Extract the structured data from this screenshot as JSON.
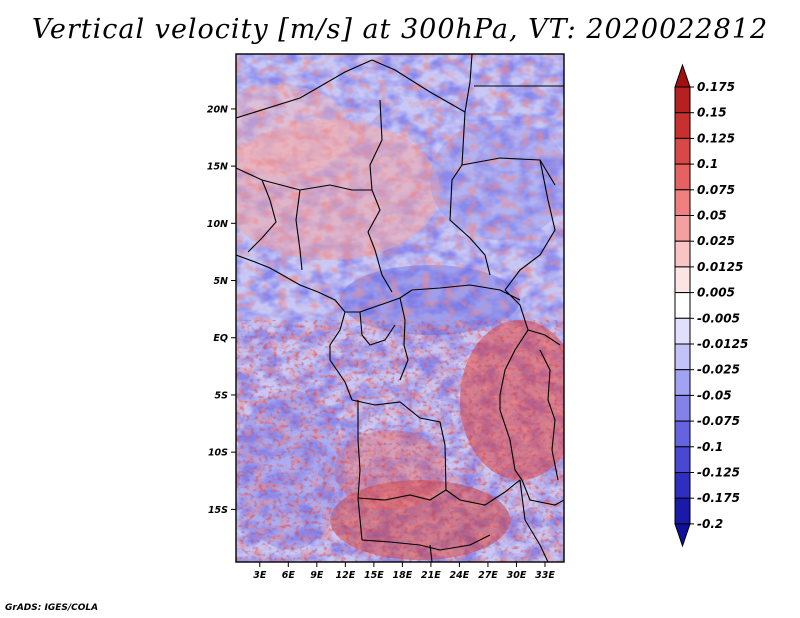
{
  "title": "Vertical velocity [m/s] at 300hPa, VT: 2020022812",
  "footer": "GrADS: IGES/COLA",
  "map": {
    "lat_labels": [
      "20N",
      "15N",
      "10N",
      "5N",
      "EQ",
      "5S",
      "10S",
      "15S"
    ],
    "lat_values": [
      20,
      15,
      10,
      5,
      0,
      -5,
      -10,
      -15
    ],
    "lon_labels": [
      "3E",
      "6E",
      "9E",
      "12E",
      "15E",
      "18E",
      "21E",
      "24E",
      "27E",
      "30E",
      "33E"
    ],
    "lon_values": [
      3,
      6,
      9,
      12,
      15,
      18,
      21,
      24,
      27,
      30,
      33
    ],
    "lon_range": [
      0.5,
      35.0
    ],
    "lat_range": [
      -19.6,
      24.8
    ],
    "field": "vertical velocity",
    "units": "m/s",
    "level": "300hPa",
    "valid_time": "2020022812"
  },
  "colorbar": {
    "labels": [
      "0.175",
      "0.15",
      "0.125",
      "0.1",
      "0.075",
      "0.05",
      "0.025",
      "0.0125",
      "0.005",
      "-0.005",
      "-0.0125",
      "-0.025",
      "-0.05",
      "-0.075",
      "-0.1",
      "-0.125",
      "-0.175",
      "-0.2"
    ],
    "colors": [
      "#a01010",
      "#b52020",
      "#c83030",
      "#d84848",
      "#e46262",
      "#ee8080",
      "#f4a0a0",
      "#f8c4c4",
      "#fce4e4",
      "#ffffff",
      "#e0e0fc",
      "#c2c2f8",
      "#a2a2f2",
      "#8282ea",
      "#6464e0",
      "#4848d2",
      "#2e2ec0",
      "#1a1aa8",
      "#10109a"
    ]
  }
}
